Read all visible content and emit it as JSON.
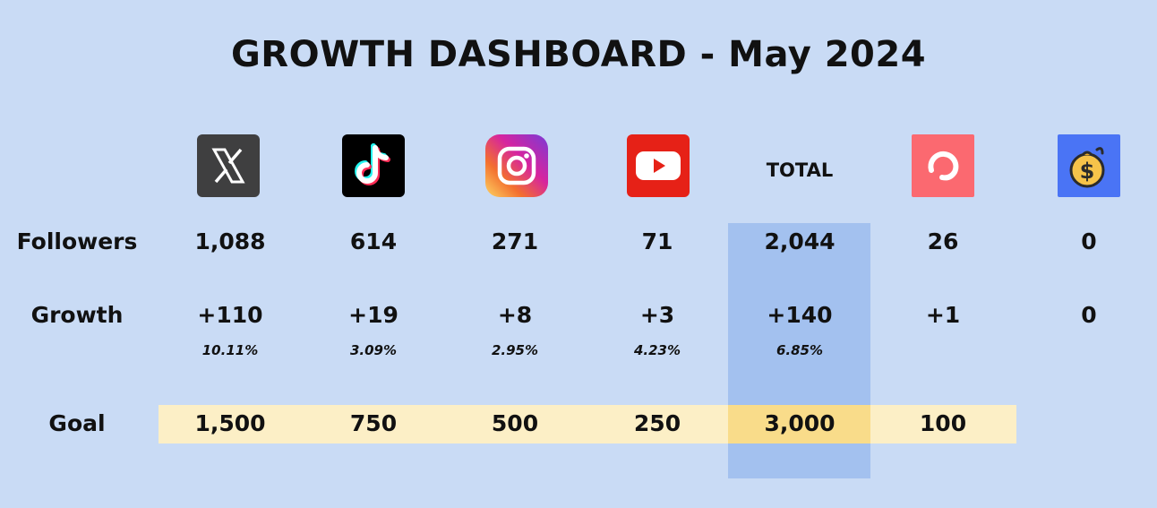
{
  "title": "GROWTH DASHBOARD - May 2024",
  "rows": {
    "followers": "Followers",
    "growth": "Growth",
    "goal": "Goal"
  },
  "columns": [
    {
      "icon": "x-icon",
      "color": "#3f3f40",
      "followers": "1,088",
      "growth": "+110",
      "pct": "10.11%",
      "goal": "1,500"
    },
    {
      "icon": "tiktok-icon",
      "color": "#000000",
      "followers": "614",
      "growth": "+19",
      "pct": "3.09%",
      "goal": "750"
    },
    {
      "icon": "instagram-icon",
      "color": "#d6249f",
      "followers": "271",
      "growth": "+8",
      "pct": "2.95%",
      "goal": "500"
    },
    {
      "icon": "youtube-icon",
      "color": "#e62117",
      "followers": "71",
      "growth": "+3",
      "pct": "4.23%",
      "goal": "250"
    },
    {
      "label": "TOTAL",
      "followers": "2,044",
      "growth": "+140",
      "pct": "6.85%",
      "goal": "3,000"
    },
    {
      "icon": "convertkit-icon",
      "color": "#fb6970",
      "followers": "26",
      "growth": "+1",
      "goal": "100"
    },
    {
      "icon": "money-bag-icon",
      "color": "#4a74f5",
      "followers": "0",
      "growth": "0"
    }
  ]
}
